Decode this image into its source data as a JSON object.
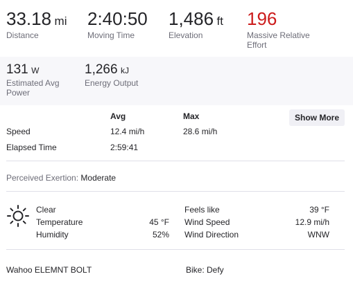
{
  "stats": {
    "distance": {
      "value": "33.18",
      "unit": "mi",
      "label": "Distance"
    },
    "moving_time": {
      "value": "2:40:50",
      "label": "Moving Time"
    },
    "elevation": {
      "value": "1,486",
      "unit": "ft",
      "label": "Elevation"
    },
    "relative_effort": {
      "value": "196",
      "label_line1": "Massive Relative",
      "label_line2": "Effort",
      "color": "#cc1b1b"
    }
  },
  "secondary_stats": {
    "power": {
      "value": "131",
      "unit": "W",
      "label_line1": "Estimated Avg",
      "label_line2": "Power"
    },
    "energy": {
      "value": "1,266",
      "unit": "kJ",
      "label": "Energy Output"
    }
  },
  "splits_table": {
    "headers": {
      "avg": "Avg",
      "max": "Max"
    },
    "rows": [
      {
        "label": "Speed",
        "avg": "12.4 mi/h",
        "max": "28.6 mi/h"
      },
      {
        "label": "Elapsed Time",
        "avg": "2:59:41",
        "max": ""
      }
    ],
    "show_more_label": "Show More"
  },
  "exertion": {
    "label": "Perceived Exertion:",
    "value": "Moderate"
  },
  "weather": {
    "icon": "sun-icon",
    "condition": "Clear",
    "temperature": {
      "label": "Temperature",
      "value": "45 °F"
    },
    "humidity": {
      "label": "Humidity",
      "value": "52%"
    },
    "feels_like": {
      "label": "Feels like",
      "value": "39 °F"
    },
    "wind_speed": {
      "label": "Wind Speed",
      "value": "12.9 mi/h"
    },
    "wind_direction": {
      "label": "Wind Direction",
      "value": "WNW"
    }
  },
  "device": {
    "name": "Wahoo ELEMNT BOLT",
    "bike": "Bike: Defy"
  }
}
